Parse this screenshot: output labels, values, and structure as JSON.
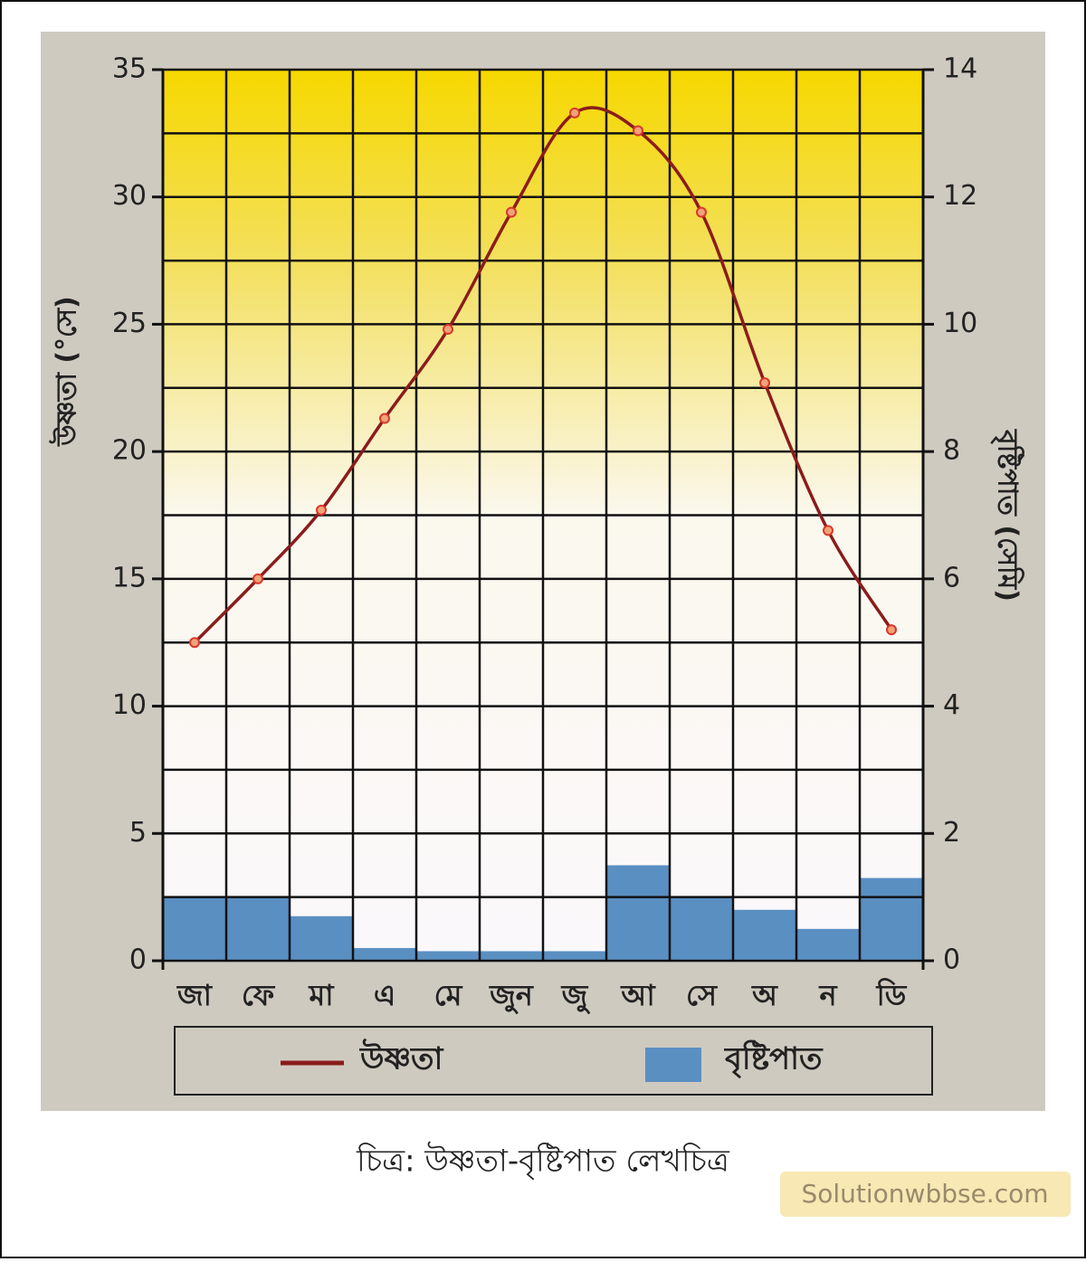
{
  "chart_data": {
    "type": "climograph",
    "y_label": "উষ্ণতা (°সে)",
    "y2_label": "বৃষ্টিপাত (সেমি)",
    "categories": [
      "জা",
      "ফে",
      "মা",
      "এ",
      "মে",
      "জুন",
      "জু",
      "আ",
      "সে",
      "অ",
      "ন",
      "ডি"
    ],
    "series": [
      {
        "name": "উষ্ণতা",
        "kind": "line",
        "color": "#8b1c1c",
        "values": [
          12.5,
          15,
          17.7,
          21.3,
          24.8,
          29.4,
          33.3,
          32.6,
          29.4,
          22.7,
          16.9,
          13.0
        ]
      },
      {
        "name": "বৃষ্টিপাত",
        "kind": "bar",
        "axis": "y2",
        "color": "#5a8fc2",
        "values": [
          1.0,
          1.0,
          0.7,
          0.2,
          0.15,
          0.15,
          0.15,
          1.5,
          1.0,
          0.8,
          0.5,
          1.3
        ]
      }
    ],
    "ylim": [
      0,
      35
    ],
    "yticks": [
      0,
      5,
      10,
      15,
      20,
      25,
      30,
      35
    ],
    "y2lim": [
      0,
      14
    ],
    "y2ticks": [
      0,
      2,
      4,
      6,
      8,
      10,
      12,
      14
    ],
    "grid": true,
    "minor_grid": true
  },
  "caption": "চিত্র: উষ্ণতা-বৃষ্টিপাত লেখচিত্র",
  "watermark": "Solutionwbbse.com"
}
